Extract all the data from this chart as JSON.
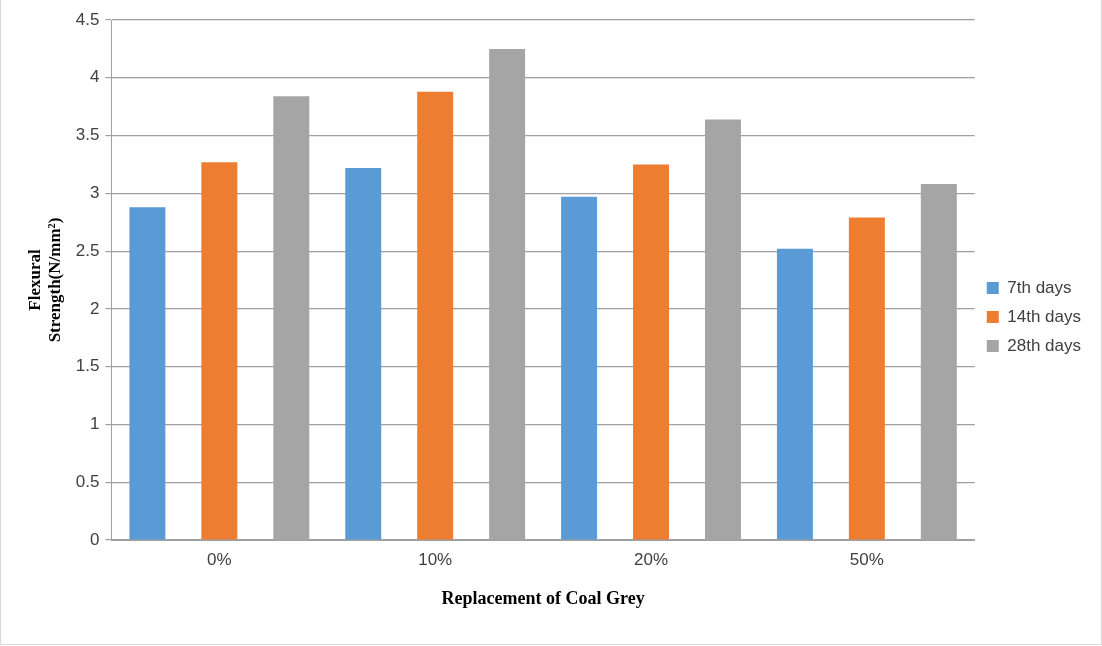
{
  "chart_data": {
    "type": "bar",
    "xlabel": "Replacement of Coal Grey",
    "ylabel": "Flexural Strength(N/mm²)",
    "categories": [
      "0%",
      "10%",
      "20%",
      "50%"
    ],
    "series": [
      {
        "name": "7th days",
        "color": "#5b9bd5",
        "values": [
          2.88,
          3.22,
          2.97,
          2.52
        ]
      },
      {
        "name": "14th days",
        "color": "#ed7d31",
        "values": [
          3.27,
          3.88,
          3.25,
          2.79
        ]
      },
      {
        "name": "28th days",
        "color": "#a5a5a5",
        "values": [
          3.84,
          4.25,
          3.64,
          3.08
        ]
      }
    ],
    "ylim": [
      0,
      4.5
    ],
    "yticks": [
      0,
      0.5,
      1,
      1.5,
      2,
      2.5,
      3,
      3.5,
      4,
      4.5
    ],
    "grid": "y",
    "legend": "right"
  }
}
